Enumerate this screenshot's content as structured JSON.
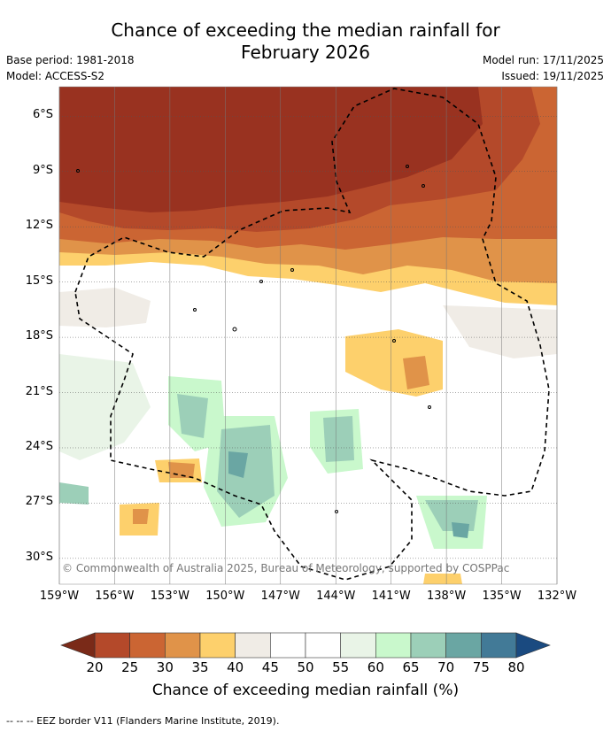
{
  "header": {
    "title_line1": "Chance of exceeding the median rainfall for",
    "title_line2": "February 2026",
    "base_period": "Base period: 1981-2018",
    "model": "Model: ACCESS-S2",
    "model_run": "Model run: 17/11/2025",
    "issued": "Issued: 19/11/2025"
  },
  "map": {
    "lat_ticks": [
      "6°S",
      "9°S",
      "12°S",
      "15°S",
      "18°S",
      "21°S",
      "24°S",
      "27°S",
      "30°S"
    ],
    "lon_ticks": [
      "159°W",
      "156°W",
      "153°W",
      "150°W",
      "147°W",
      "144°W",
      "141°W",
      "138°W",
      "135°W",
      "132°W"
    ],
    "copyright": "© Commonwealth of Australia 2025, Bureau of Meteorology, supported by COSPPac"
  },
  "colorbar": {
    "ticks": [
      "20",
      "25",
      "30",
      "35",
      "40",
      "45",
      "50",
      "55",
      "60",
      "65",
      "70",
      "75",
      "80"
    ],
    "colors": [
      "#993220",
      "#b4492a",
      "#cb6533",
      "#e09349",
      "#fdd06c",
      "#f0ece6",
      "#ffffff",
      "#ffffff",
      "#e9f4e7",
      "#c9f8cc",
      "#9ccfb8",
      "#6aa6a3",
      "#427a97"
    ],
    "low_color": "#7a2a18",
    "high_color": "#1a4a80",
    "title": "Chance of exceeding median rainfall (%)"
  },
  "footnote": "--  --  -- EEZ border V11 (Flanders Marine Institute, 2019)."
}
